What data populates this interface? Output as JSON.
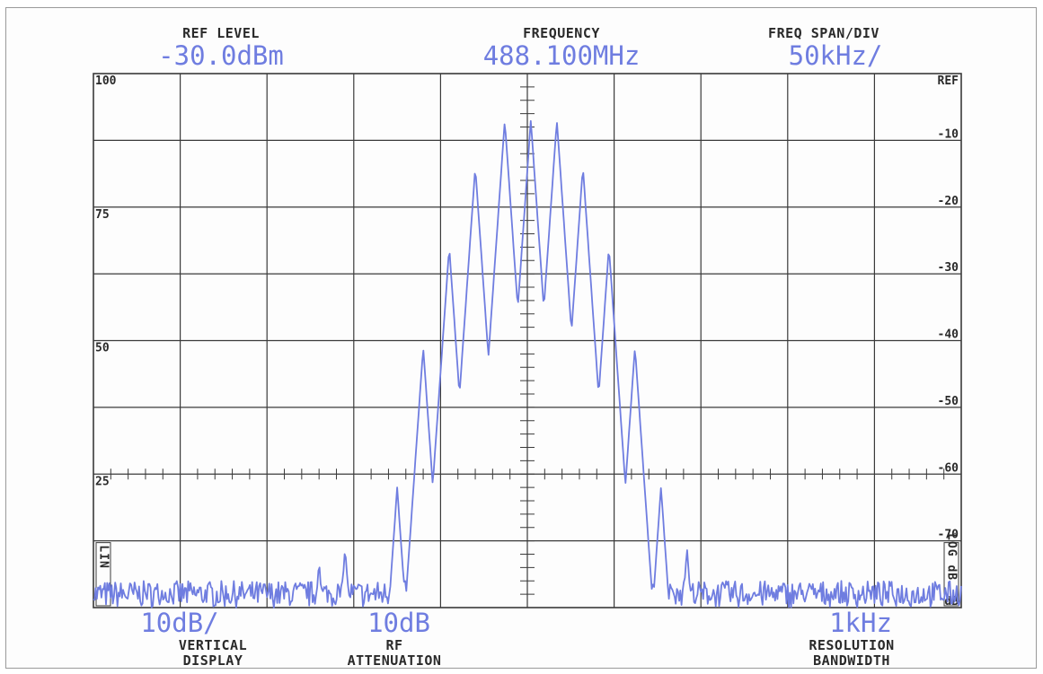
{
  "header": {
    "ref_level": {
      "label": "REF LEVEL",
      "value": "-30.0dBm"
    },
    "frequency": {
      "label": "FREQUENCY",
      "value": "488.100MHz"
    },
    "span": {
      "label": "FREQ SPAN/DIV",
      "value": "50kHz/"
    }
  },
  "footer": {
    "vertical": {
      "value": "10dB/",
      "label1": "VERTICAL",
      "label2": "DISPLAY"
    },
    "rf": {
      "value": "10dB",
      "label1": "RF",
      "label2": "ATTENUATION"
    },
    "rbw": {
      "value": "1kHz",
      "label1": "RESOLUTION",
      "label2": "BANDWIDTH"
    }
  },
  "side": {
    "left_mode": "LIN",
    "right_mode": "LOG dB"
  },
  "colors": {
    "trace": "#6f7de0",
    "grid": "#3a3a3a",
    "text": "#2a2a2a"
  },
  "chart_data": {
    "type": "line",
    "title": "",
    "center_frequency_mhz": 488.1,
    "span_per_div_khz": 50,
    "x_unit": "kHz offset from center",
    "xlim": [
      -250,
      250
    ],
    "y_unit": "dB relative to REF",
    "ylim": [
      -80,
      0
    ],
    "grid": true,
    "left_tick_labels": [
      "100",
      "75",
      "50",
      "25"
    ],
    "left_tick_positions_db": [
      0,
      -20,
      -40,
      -60
    ],
    "right_tick_labels": [
      "REF",
      "-10",
      "-20",
      "-30",
      "-40",
      "-50",
      "-60",
      "-70",
      "dB"
    ],
    "right_tick_positions_db": [
      0,
      -10,
      -20,
      -30,
      -40,
      -50,
      -60,
      -70,
      -80
    ],
    "noise_floor_db": -78,
    "peaks": [
      {
        "offset_khz": -75,
        "level_db": -62
      },
      {
        "offset_khz": -60,
        "level_db": -41
      },
      {
        "offset_khz": -45,
        "level_db": -26
      },
      {
        "offset_khz": -30,
        "level_db": -14
      },
      {
        "offset_khz": -13,
        "level_db": -7
      },
      {
        "offset_khz": 2,
        "level_db": -7
      },
      {
        "offset_khz": 17,
        "level_db": -7
      },
      {
        "offset_khz": 32,
        "level_db": -14
      },
      {
        "offset_khz": 47,
        "level_db": -26
      },
      {
        "offset_khz": 62,
        "level_db": -41
      },
      {
        "offset_khz": 77,
        "level_db": -62
      },
      {
        "offset_khz": 92,
        "level_db": -71
      },
      {
        "offset_khz": -105,
        "level_db": -71
      },
      {
        "offset_khz": -120,
        "level_db": -73
      }
    ]
  }
}
